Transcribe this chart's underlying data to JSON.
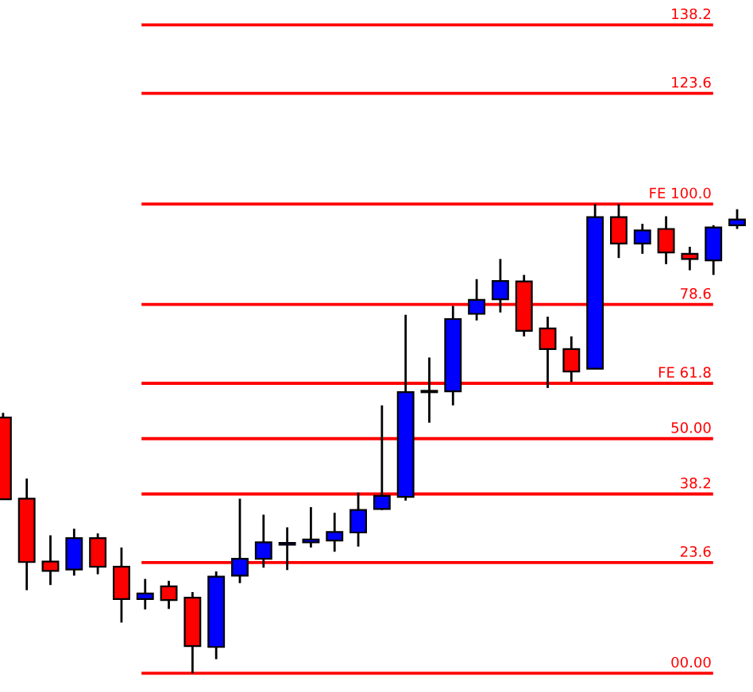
{
  "chart_data": {
    "type": "candlestick",
    "categories": [
      null,
      null,
      null,
      null,
      null,
      null,
      null,
      null,
      null,
      null,
      null,
      null,
      null,
      null,
      null,
      null,
      null,
      null,
      null,
      null,
      null,
      null,
      null,
      null,
      null,
      null,
      null,
      null,
      null,
      null,
      null,
      null
    ],
    "ohlc": [
      [
        54.5,
        55.5,
        37.1,
        37.1
      ],
      [
        37.2,
        41.5,
        17.7,
        23.7
      ],
      [
        23.8,
        29.4,
        18.8,
        21.8
      ],
      [
        22.1,
        30.8,
        20.8,
        28.8
      ],
      [
        28.8,
        29.8,
        21.1,
        22.7
      ],
      [
        22.7,
        26.8,
        10.8,
        15.8
      ],
      [
        15.8,
        20.1,
        13.6,
        17.0
      ],
      [
        18.5,
        19.7,
        13.7,
        15.6
      ],
      [
        16.1,
        17.3,
        0,
        5.8
      ],
      [
        5.6,
        21.7,
        3.0,
        20.6
      ],
      [
        20.8,
        37.2,
        19.2,
        24.4
      ],
      [
        24.4,
        33.8,
        22.5,
        27.9
      ],
      [
        27.4,
        31.1,
        22.0,
        27.8
      ],
      [
        27.9,
        35.4,
        26.8,
        28.5
      ],
      [
        28.3,
        34.2,
        25.9,
        30.1
      ],
      [
        30.0,
        38.5,
        27.0,
        34.8
      ],
      [
        35.0,
        57.1,
        34.8,
        37.8
      ],
      [
        37.6,
        76.4,
        36.8,
        59.9
      ],
      [
        59.9,
        67.3,
        53.4,
        60.2
      ],
      [
        60.1,
        78.3,
        57.1,
        75.5
      ],
      [
        76.6,
        84.0,
        75.2,
        79.6
      ],
      [
        79.7,
        88.3,
        76.9,
        83.6
      ],
      [
        83.5,
        84.9,
        71.8,
        73.0
      ],
      [
        73.5,
        76.0,
        60.8,
        69.1
      ],
      [
        69.1,
        71.8,
        62.1,
        64.3
      ],
      [
        64.9,
        100.0,
        64.9,
        97.2
      ],
      [
        97.2,
        100.0,
        88.5,
        91.6
      ],
      [
        91.6,
        95.8,
        89.4,
        94.4
      ],
      [
        94.7,
        97.4,
        87.2,
        89.7
      ],
      [
        89.4,
        90.9,
        85.9,
        88.3
      ],
      [
        88.0,
        95.5,
        84.9,
        95.0
      ],
      [
        95.5,
        98.9,
        94.7,
        96.7
      ]
    ],
    "colors": [
      "#ff0000",
      "#ff0000",
      "#ff0000",
      "#0000ff",
      "#ff0000",
      "#ff0000",
      "#0000ff",
      "#ff0000",
      "#ff0000",
      "#0000ff",
      "#0000ff",
      "#0000ff",
      "#0000ff",
      "#0000ff",
      "#0000ff",
      "#0000ff",
      "#0000ff",
      "#0000ff",
      "#0000ff",
      "#0000ff",
      "#0000ff",
      "#0000ff",
      "#ff0000",
      "#ff0000",
      "#ff0000",
      "#0000ff",
      "#ff0000",
      "#0000ff",
      "#ff0000",
      "#ff0000",
      "#0000ff",
      "#0000ff"
    ],
    "ylim": [
      -4,
      143.5
    ],
    "ref_lines": [
      {
        "axis": "y",
        "value": 138.2,
        "label": "138.2",
        "color": "#ff0000"
      },
      {
        "axis": "y",
        "value": 123.6,
        "label": "123.6",
        "color": "#ff0000"
      },
      {
        "axis": "y",
        "value": 100.0,
        "label": "FE 100.0",
        "color": "#ff0000"
      },
      {
        "axis": "y",
        "value": 78.6,
        "label": "78.6",
        "color": "#ff0000"
      },
      {
        "axis": "y",
        "value": 61.8,
        "label": "FE 61.8",
        "color": "#ff0000"
      },
      {
        "axis": "y",
        "value": 50.0,
        "label": "50.00",
        "color": "#ff0000"
      },
      {
        "axis": "y",
        "value": 38.2,
        "label": "38.2",
        "color": "#ff0000"
      },
      {
        "axis": "y",
        "value": 23.6,
        "label": "23.6",
        "color": "#ff0000"
      },
      {
        "axis": "y",
        "value": 0,
        "label": "00.00",
        "color": "#ff0000"
      }
    ]
  }
}
